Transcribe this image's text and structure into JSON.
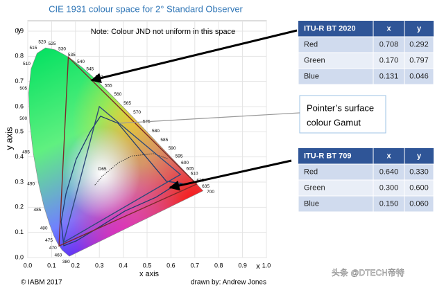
{
  "title": "CIE 1931 colour space for 2° Standard Observer",
  "note": "Note: Colour JND not uniform in this space",
  "diagram": {
    "xlabel": "x axis",
    "ylabel": "y axis",
    "x_symbol": "x",
    "y_symbol": "y",
    "xlim": [
      0,
      1
    ],
    "ylim": [
      0,
      0.9
    ],
    "xticks": [
      {
        "value": 0,
        "label": "0.0"
      },
      {
        "value": 0.1,
        "label": "0.1"
      },
      {
        "value": 0.2,
        "label": "0.2"
      },
      {
        "value": 0.3,
        "label": "0.3"
      },
      {
        "value": 0.4,
        "label": "0.4"
      },
      {
        "value": 0.5,
        "label": "0.5"
      },
      {
        "value": 0.6,
        "label": "0.6"
      },
      {
        "value": 0.7,
        "label": "0.7"
      },
      {
        "value": 0.8,
        "label": "0.8"
      },
      {
        "value": 0.9,
        "label": "0.9"
      },
      {
        "value": 1,
        "label": "1.0"
      }
    ],
    "yticks": [
      {
        "value": 0,
        "label": "0.0"
      },
      {
        "value": 0.1,
        "label": "0.1"
      },
      {
        "value": 0.2,
        "label": "0.2"
      },
      {
        "value": 0.3,
        "label": "0.3"
      },
      {
        "value": 0.4,
        "label": "0.4"
      },
      {
        "value": 0.5,
        "label": "0.5"
      },
      {
        "value": 0.6,
        "label": "0.6"
      },
      {
        "value": 0.7,
        "label": "0.7"
      },
      {
        "value": 0.8,
        "label": "0.8"
      },
      {
        "value": 0.9,
        "label": "0.9"
      }
    ],
    "wavelength_labels": [
      "380",
      "460",
      "470",
      "475",
      "480",
      "485",
      "490",
      "495",
      "500",
      "505",
      "510",
      "515",
      "520",
      "525",
      "530",
      "535",
      "540",
      "545",
      "550",
      "555",
      "560",
      "565",
      "570",
      "575",
      "580",
      "585",
      "590",
      "595",
      "600",
      "605",
      "610",
      "620",
      "635",
      "700"
    ],
    "whitepoint": "D65"
  },
  "tables": [
    {
      "header": [
        "ITU-R BT 2020",
        "x",
        "y"
      ],
      "rows": [
        [
          "Red",
          "0.708",
          "0.292"
        ],
        [
          "Green",
          "0.170",
          "0.797"
        ],
        [
          "Blue",
          "0.131",
          "0.046"
        ]
      ]
    },
    {
      "header": [
        "ITU-R BT 709",
        "x",
        "y"
      ],
      "rows": [
        [
          "Red",
          "0.640",
          "0.330"
        ],
        [
          "Green",
          "0.300",
          "0.600"
        ],
        [
          "Blue",
          "0.150",
          "0.060"
        ]
      ]
    }
  ],
  "pointer_label": [
    "Pointer’s surface",
    "colour Gamut"
  ],
  "credit": "© IABM 2017",
  "author": "drawn by: Andrew Jones",
  "watermark": "头条 @DTECH帝特"
}
